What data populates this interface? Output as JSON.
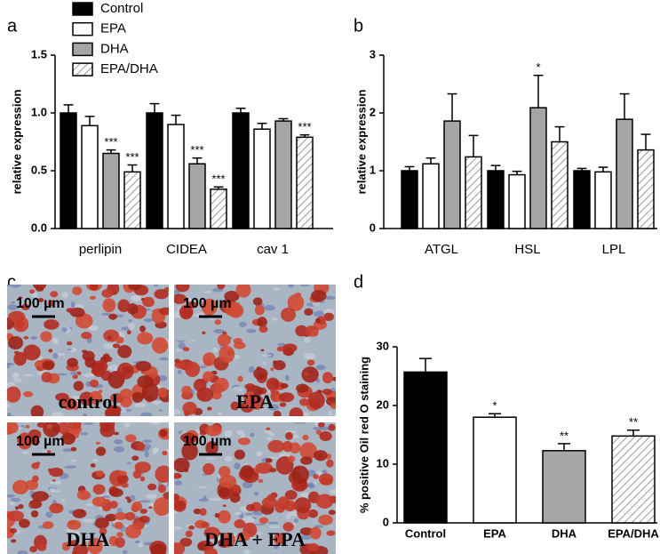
{
  "chart_data": [
    {
      "type": "bar",
      "panel": "a",
      "ylabel": "relative expression",
      "categories": [
        "perlipin",
        "CIDEA",
        "cav 1"
      ],
      "ylim": [
        0,
        1.5
      ],
      "yticks": [
        {
          "value": 0,
          "label": "0.0"
        },
        {
          "value": 0.5,
          "label": "0.5"
        },
        {
          "value": 1,
          "label": "1.0"
        },
        {
          "value": 1.5,
          "label": "1.5"
        }
      ],
      "series": [
        {
          "name": "Control",
          "color": "#000000",
          "hatched": false,
          "values": [
            1.0,
            1.0,
            1.0
          ],
          "errors": [
            0.07,
            0.08,
            0.04
          ],
          "significance": [
            null,
            null,
            null
          ]
        },
        {
          "name": "EPA",
          "color": "#ffffff",
          "hatched": false,
          "values": [
            0.89,
            0.9,
            0.86
          ],
          "errors": [
            0.08,
            0.08,
            0.05
          ],
          "significance": [
            null,
            null,
            null
          ]
        },
        {
          "name": "DHA",
          "color": "#a6a6a6",
          "hatched": false,
          "values": [
            0.65,
            0.56,
            0.93
          ],
          "errors": [
            0.03,
            0.05,
            0.02
          ],
          "significance": [
            "***",
            "***",
            null
          ]
        },
        {
          "name": "EPA/DHA",
          "color": "#a6a6a6",
          "hatched": true,
          "values": [
            0.49,
            0.34,
            0.79
          ],
          "errors": [
            0.06,
            0.02,
            0.02
          ],
          "significance": [
            "***",
            "***",
            "***"
          ]
        }
      ]
    },
    {
      "type": "bar",
      "panel": "b",
      "ylabel": "relative expression",
      "categories": [
        "ATGL",
        "HSL",
        "LPL"
      ],
      "ylim": [
        0,
        3
      ],
      "yticks": [
        0,
        1,
        2,
        3
      ],
      "series": [
        {
          "color": "#000000",
          "hatched": false,
          "values": [
            1.0,
            1.0,
            1.0
          ],
          "errors": [
            0.07,
            0.09,
            0.04
          ],
          "significance": [
            null,
            null,
            null
          ]
        },
        {
          "color": "#ffffff",
          "hatched": false,
          "values": [
            1.12,
            0.93,
            0.98
          ],
          "errors": [
            0.1,
            0.06,
            0.08
          ],
          "significance": [
            null,
            null,
            null
          ]
        },
        {
          "color": "#a6a6a6",
          "hatched": false,
          "values": [
            1.86,
            2.09,
            1.89
          ],
          "errors": [
            0.47,
            0.56,
            0.44
          ],
          "significance": [
            null,
            "*",
            null
          ]
        },
        {
          "color": "#a6a6a6",
          "hatched": true,
          "values": [
            1.24,
            1.5,
            1.36
          ],
          "errors": [
            0.37,
            0.26,
            0.27
          ],
          "significance": [
            null,
            null,
            null
          ]
        }
      ]
    },
    {
      "type": "bar",
      "panel": "d",
      "ylabel": "% positive Oil red O staining",
      "categories": [
        "Control",
        "EPA",
        "DHA",
        "EPA/DHA"
      ],
      "ylim": [
        0,
        30
      ],
      "yticks": [
        0,
        10,
        20,
        30
      ],
      "values": [
        25.7,
        18.0,
        12.3,
        14.8
      ],
      "errors": [
        2.3,
        0.6,
        1.2,
        1.0
      ],
      "significance": [
        null,
        "*",
        "**",
        "**"
      ],
      "colors": [
        "#000000",
        "#ffffff",
        "#a6a6a6",
        "#a6a6a6"
      ],
      "hatched": [
        false,
        false,
        false,
        true
      ]
    }
  ],
  "image_panel": {
    "panel": "c",
    "images": [
      {
        "label": "control",
        "scale": "100 µm"
      },
      {
        "label": "EPA",
        "scale": "100 µm"
      },
      {
        "label": "DHA",
        "scale": "100 µm"
      },
      {
        "label": "DHA + EPA",
        "scale": "100 µm"
      }
    ]
  }
}
